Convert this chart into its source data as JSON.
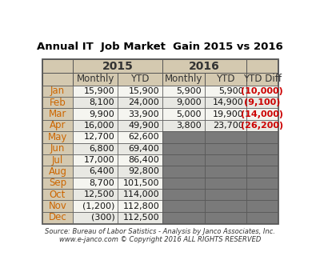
{
  "title": "Annual IT  Job Market  Gain 2015 vs 2016",
  "months": [
    "Jan",
    "Feb",
    "Mar",
    "Apr",
    "May",
    "Jun",
    "Jul",
    "Aug",
    "Sep",
    "Oct",
    "Nov",
    "Dec"
  ],
  "col2015_monthly": [
    "15,900",
    "8,100",
    "9,900",
    "16,000",
    "12,700",
    "6,800",
    "17,000",
    "6,400",
    "8,700",
    "12,500",
    "(1,200)",
    "(300)"
  ],
  "col2015_ytd": [
    "15,900",
    "24,000",
    "33,900",
    "49,900",
    "62,600",
    "69,400",
    "86,400",
    "92,800",
    "101,500",
    "114,000",
    "112,800",
    "112,500"
  ],
  "col2016_monthly": [
    "5,900",
    "9,000",
    "5,000",
    "3,800",
    "",
    "",
    "",
    "",
    "",
    "",
    "",
    ""
  ],
  "col2016_ytd": [
    "5,900",
    "14,900",
    "19,900",
    "23,700",
    "",
    "",
    "",
    "",
    "",
    "",
    "",
    ""
  ],
  "col_ytd_diff": [
    "(10,000)",
    "(9,100)",
    "(14,000)",
    "(26,200)",
    "",
    "",
    "",
    "",
    "",
    "",
    "",
    ""
  ],
  "header_year_2015": "2015",
  "header_year_2016": "2016",
  "header_monthly": "Monthly",
  "header_ytd": "YTD",
  "header_ytd_diff": "YTD Diff",
  "source_line1": "Source: Bureau of Labor Satistics - Analysis by Janco Associates, Inc.",
  "source_line2": "www.e-janco.com © Copyright 2016 ALL RIGHTS RESERVED",
  "color_header_bg": "#d4c9b0",
  "color_month_col_bg": "#d4c9b0",
  "color_row_light": "#f5f5f0",
  "color_row_dark": "#e8e8e3",
  "color_gray_cell": "#7a7a7a",
  "color_red_text": "#cc0000",
  "color_orange_month": "#cc6600",
  "color_dark_text": "#333333",
  "color_black_text": "#111111",
  "color_title": "#000000",
  "color_border": "#555555",
  "title_fontsize": 9.5,
  "header_fontsize": 8.5,
  "cell_fontsize": 8.0,
  "month_fontsize": 8.5,
  "source_fontsize": 6.0
}
